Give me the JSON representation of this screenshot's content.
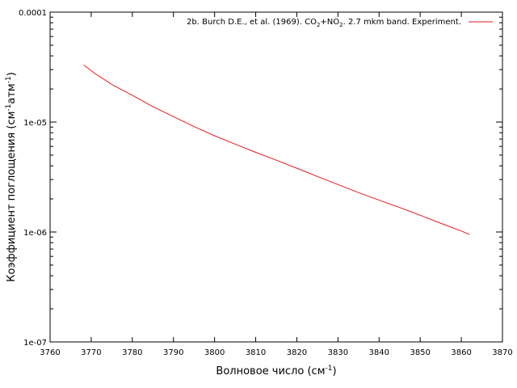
{
  "chart_data": {
    "type": "line",
    "title": "",
    "xlabel": {
      "main": "Волновое число (см",
      "sup": "-1",
      "end": ")"
    },
    "ylabel": {
      "main": "Коэффициент поглощения (см",
      "sup1": "-1",
      "mid": "атм",
      "sup2": "-1",
      "end": ")"
    },
    "xlim": [
      3760,
      3870
    ],
    "ylim": [
      1e-07,
      0.0001
    ],
    "yscale": "log",
    "grid": false,
    "legend_position": "top-right",
    "x_ticks": [
      3760,
      3770,
      3780,
      3790,
      3800,
      3810,
      3820,
      3830,
      3840,
      3850,
      3860,
      3870
    ],
    "x_tick_labels": [
      "3760",
      "3770",
      "3780",
      "3790",
      "3800",
      "3810",
      "3820",
      "3830",
      "3840",
      "3850",
      "3860",
      "3870"
    ],
    "y_ticks": [
      1e-07,
      1e-06,
      1e-05,
      0.0001
    ],
    "y_tick_labels": [
      "1e-07",
      "1e-06",
      "1e-05",
      "0.0001"
    ],
    "series": [
      {
        "name": {
          "p1": "2b. Burch D.E., et al. (1969). CO",
          "s1": "2",
          "p2": "+NO",
          "s2": "2",
          "p3": ". 2.7 mkm band. Experiment."
        },
        "color": "#e41a1c",
        "x": [
          3768.2,
          3771,
          3775,
          3780,
          3785,
          3790,
          3795,
          3800,
          3805,
          3810,
          3815,
          3820,
          3825,
          3830,
          3835,
          3840,
          3845,
          3850,
          3855,
          3860,
          3862
        ],
        "y": [
          3.3e-05,
          2.75e-05,
          2.2e-05,
          1.75e-05,
          1.38e-05,
          1.12e-05,
          9.1e-06,
          7.5e-06,
          6.3e-06,
          5.3e-06,
          4.5e-06,
          3.8e-06,
          3.2e-06,
          2.7e-06,
          2.28e-06,
          1.95e-06,
          1.67e-06,
          1.42e-06,
          1.2e-06,
          1.02e-06,
          9.5e-07
        ]
      }
    ]
  }
}
